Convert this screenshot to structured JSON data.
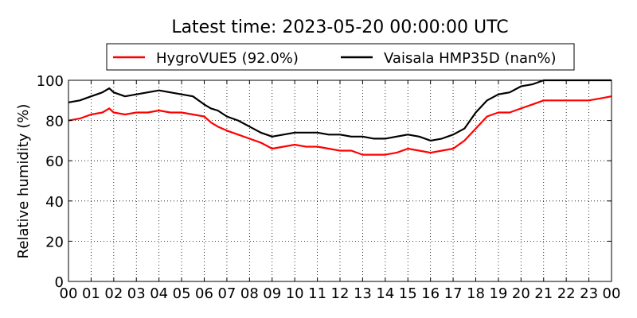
{
  "chart_data": {
    "type": "line",
    "title": "Latest time: 2023-05-20 00:00:00 UTC",
    "ylabel": "Relative humidity (%)",
    "xlabel": "",
    "xlim": [
      0,
      24
    ],
    "ylim": [
      0,
      100
    ],
    "x_tick_labels": [
      "00",
      "01",
      "02",
      "03",
      "04",
      "05",
      "06",
      "07",
      "08",
      "09",
      "10",
      "11",
      "12",
      "13",
      "14",
      "15",
      "16",
      "17",
      "18",
      "19",
      "20",
      "21",
      "22",
      "23",
      "00"
    ],
    "y_tick_labels": [
      "0",
      "20",
      "40",
      "60",
      "80",
      "100"
    ],
    "y_ticks": [
      0,
      20,
      40,
      60,
      80,
      100
    ],
    "grid": true,
    "legend_position": "top-center",
    "series": [
      {
        "name": "HygroVUE5 (92.0%)",
        "color": "#ff0000",
        "x": [
          0,
          0.5,
          1,
          1.5,
          1.8,
          2,
          2.5,
          3,
          3.5,
          4,
          4.5,
          5,
          5.5,
          6,
          6.3,
          6.6,
          7,
          7.5,
          8,
          8.5,
          9,
          9.5,
          10,
          10.5,
          11,
          11.5,
          12,
          12.5,
          13,
          13.5,
          14,
          14.5,
          15,
          15.5,
          16,
          16.5,
          17,
          17.5,
          18,
          18.5,
          19,
          19.5,
          20,
          20.5,
          21,
          21.5,
          22,
          22.5,
          23,
          23.5,
          24
        ],
        "y": [
          80,
          81,
          83,
          84,
          86,
          84,
          83,
          84,
          84,
          85,
          84,
          84,
          83,
          82,
          79,
          77,
          75,
          73,
          71,
          69,
          66,
          67,
          68,
          67,
          67,
          66,
          65,
          65,
          63,
          63,
          63,
          64,
          66,
          65,
          64,
          65,
          66,
          70,
          76,
          82,
          84,
          84,
          86,
          88,
          90,
          90,
          90,
          90,
          90,
          91,
          92
        ]
      },
      {
        "name": "Vaisala HMP35D (nan%)",
        "color": "#000000",
        "x": [
          0,
          0.5,
          1,
          1.5,
          1.8,
          2,
          2.5,
          3,
          3.5,
          4,
          4.5,
          5,
          5.5,
          6,
          6.3,
          6.6,
          7,
          7.5,
          8,
          8.5,
          9,
          9.5,
          10,
          10.5,
          11,
          11.5,
          12,
          12.5,
          13,
          13.5,
          14,
          14.5,
          15,
          15.5,
          16,
          16.5,
          17,
          17.5,
          18,
          18.5,
          19,
          19.5,
          20,
          20.5,
          21,
          21.5,
          22,
          22.5,
          23,
          23.5,
          24
        ],
        "y": [
          89,
          90,
          92,
          94,
          96,
          94,
          92,
          93,
          94,
          95,
          94,
          93,
          92,
          88,
          86,
          85,
          82,
          80,
          77,
          74,
          72,
          73,
          74,
          74,
          74,
          73,
          73,
          72,
          72,
          71,
          71,
          72,
          73,
          72,
          70,
          71,
          73,
          76,
          84,
          90,
          93,
          94,
          97,
          98,
          100,
          100,
          100,
          100,
          100,
          100,
          100
        ]
      }
    ]
  }
}
